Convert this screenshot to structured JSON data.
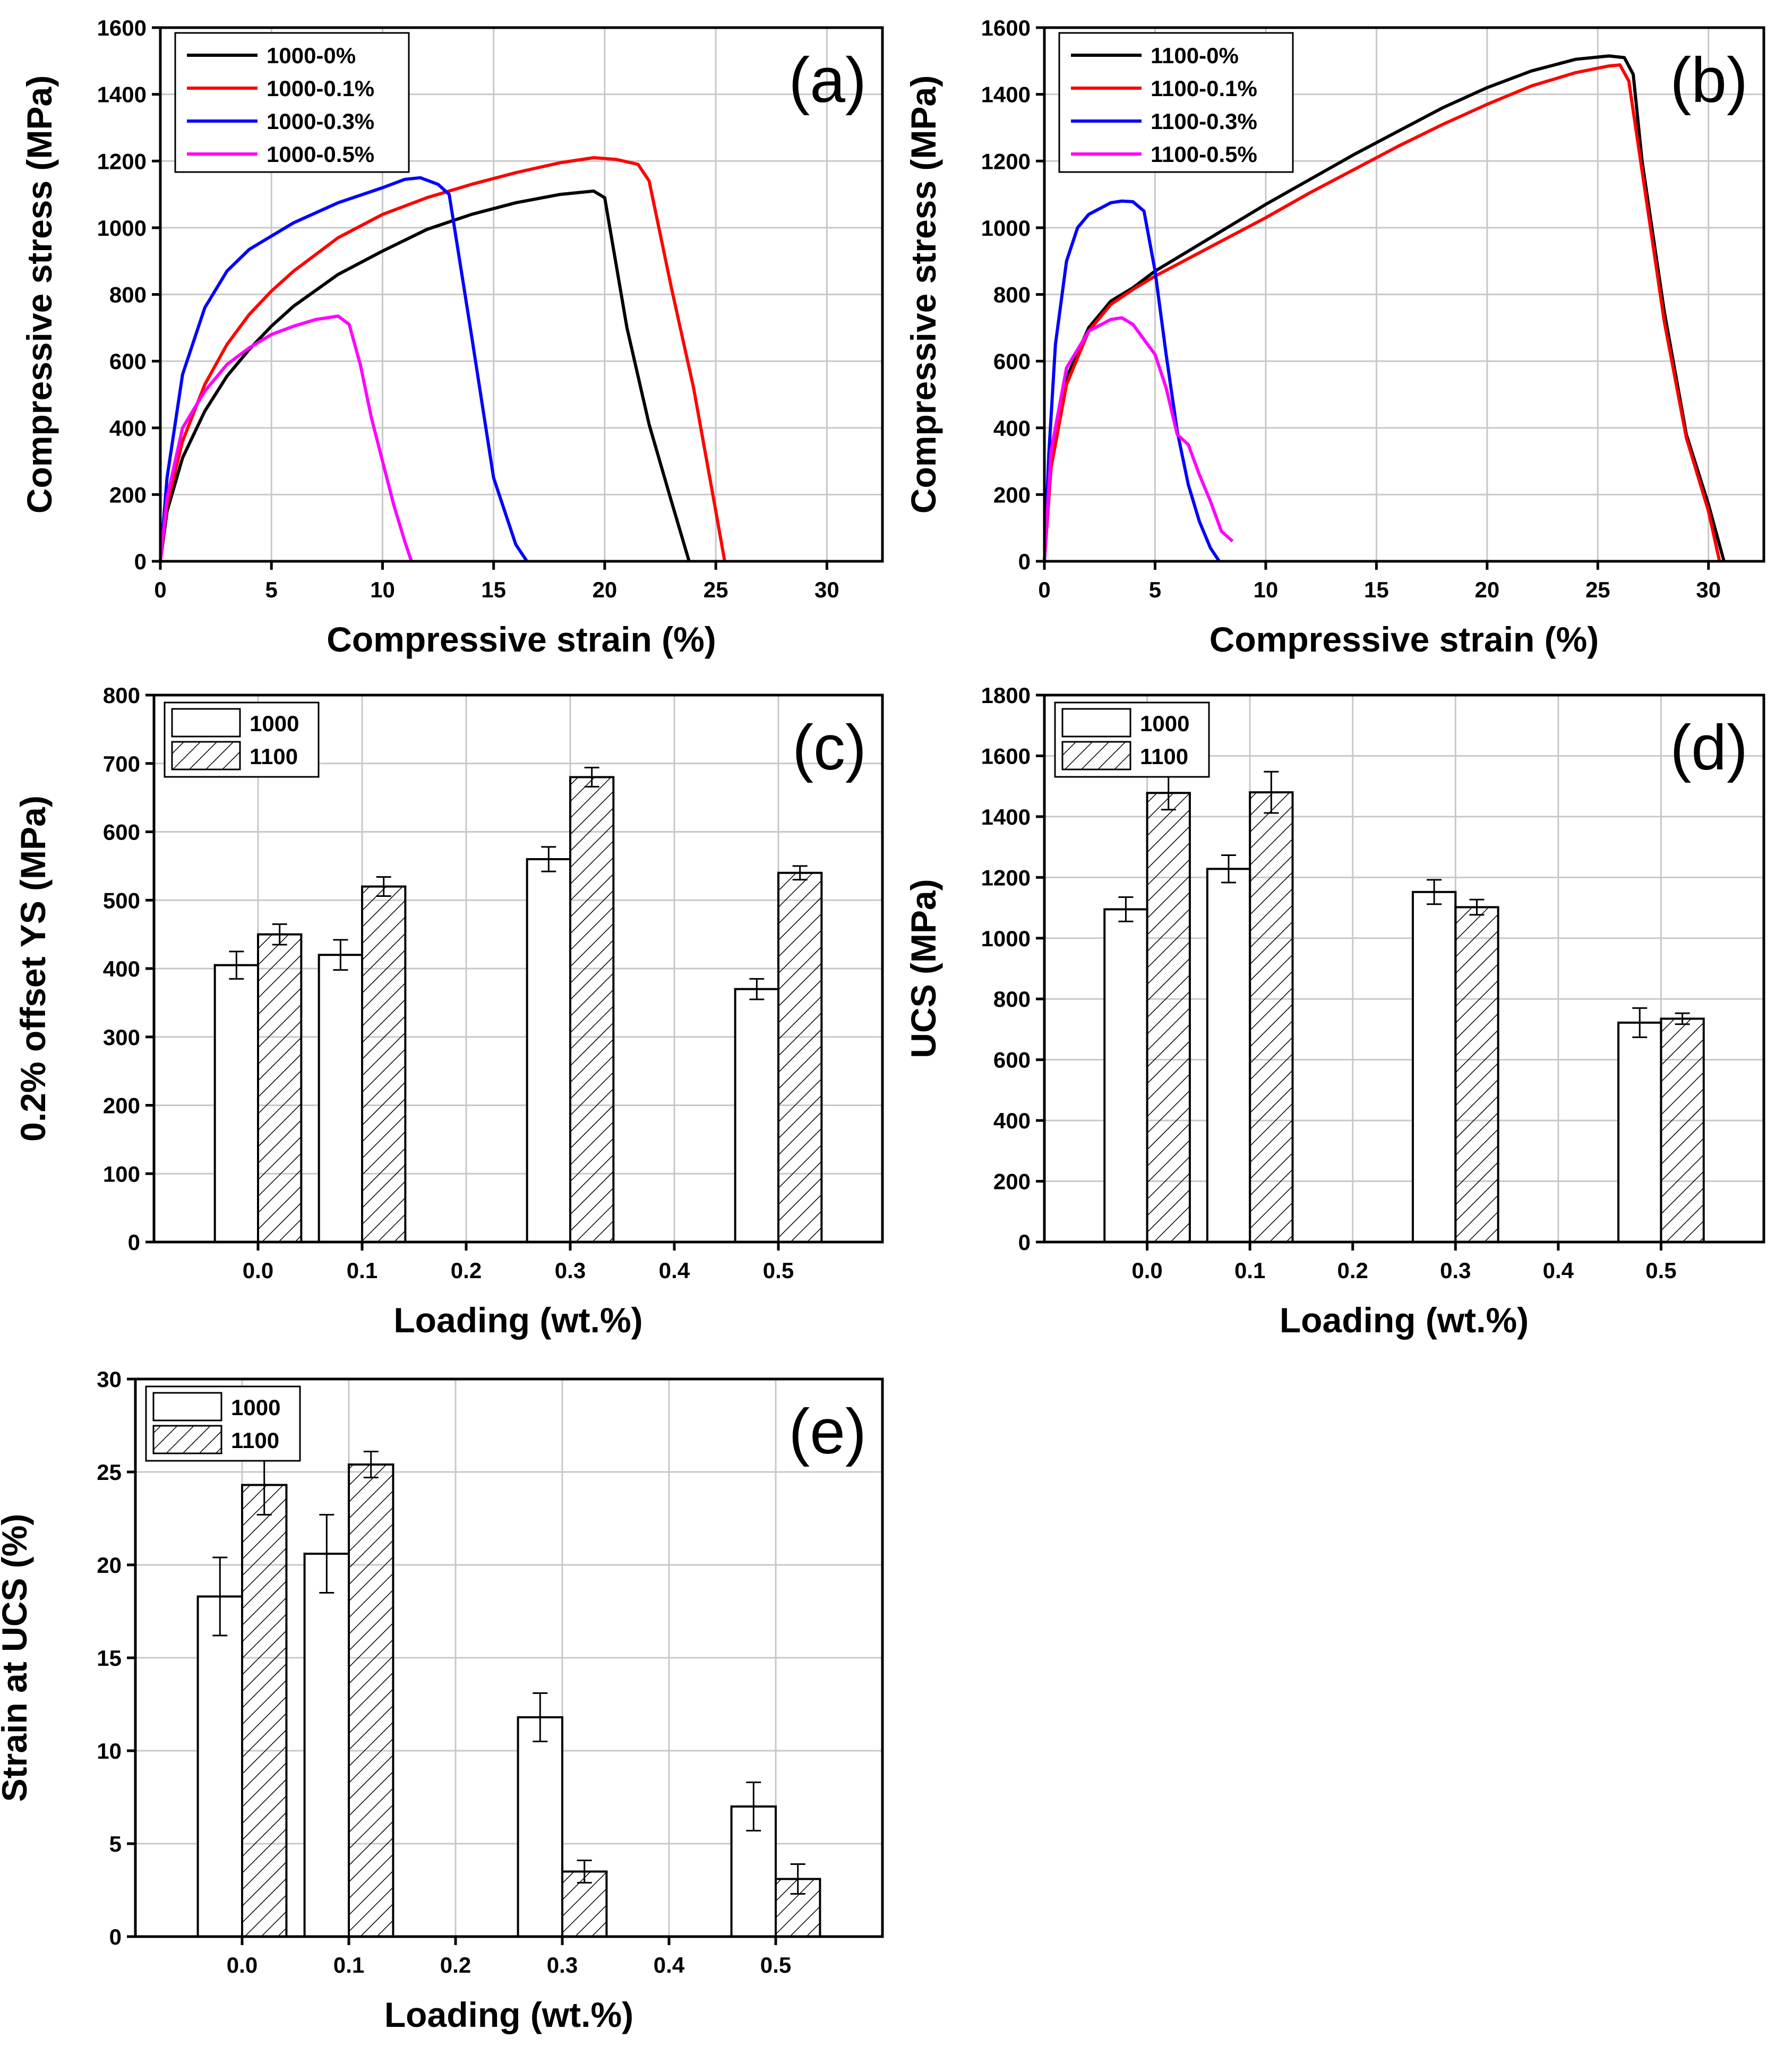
{
  "colors": {
    "black": "#000000",
    "red": "#ff0000",
    "blue": "#0000ff",
    "magenta": "#ff00ff"
  },
  "chart_data": [
    {
      "id": "a",
      "type": "line",
      "panel_label": "(a)",
      "xlabel": "Compressive strain (%)",
      "ylabel": "Compressive stress (MPa)",
      "xlim": [
        0,
        32.5
      ],
      "ylim": [
        0,
        1600
      ],
      "xticks": [
        "0",
        "5",
        "10",
        "15",
        "20",
        "25",
        "30"
      ],
      "yticks": [
        "0",
        "200",
        "400",
        "600",
        "800",
        "1000",
        "1200",
        "1400",
        "1600"
      ],
      "legend": "top-left",
      "series": [
        {
          "name": "1000-0%",
          "color": "#000000",
          "x": [
            0,
            0.3,
            1,
            2,
            3,
            4,
            5,
            6,
            8,
            10,
            12,
            14,
            16,
            18,
            19.5,
            20,
            21,
            22,
            23,
            23.8
          ],
          "y": [
            0,
            150,
            310,
            450,
            555,
            635,
            705,
            765,
            860,
            930,
            995,
            1040,
            1075,
            1100,
            1110,
            1090,
            700,
            410,
            180,
            0
          ]
        },
        {
          "name": "1000-0.1%",
          "color": "#ff0000",
          "x": [
            0,
            0.3,
            1,
            2,
            3,
            4,
            5,
            6,
            8,
            10,
            12,
            14,
            16,
            18,
            19.5,
            20.5,
            21.5,
            22,
            23,
            24,
            25,
            25.4
          ],
          "y": [
            0,
            170,
            360,
            530,
            650,
            740,
            810,
            870,
            970,
            1040,
            1090,
            1130,
            1165,
            1195,
            1210,
            1205,
            1190,
            1140,
            820,
            520,
            150,
            0
          ]
        },
        {
          "name": "1000-0.3%",
          "color": "#0000ff",
          "x": [
            0,
            0.3,
            1,
            2,
            3,
            4,
            5,
            6,
            8,
            10,
            11,
            11.7,
            12.5,
            13,
            14,
            15,
            16,
            16.5
          ],
          "y": [
            0,
            250,
            560,
            760,
            870,
            935,
            975,
            1015,
            1075,
            1120,
            1145,
            1150,
            1130,
            1100,
            680,
            250,
            50,
            0
          ]
        },
        {
          "name": "1000-0.5%",
          "color": "#ff00ff",
          "x": [
            0,
            0.3,
            1,
            2,
            3,
            4,
            5,
            6,
            7,
            8,
            8.5,
            9,
            9.5,
            10,
            10.5,
            11,
            11.3
          ],
          "y": [
            0,
            190,
            400,
            510,
            590,
            640,
            680,
            705,
            725,
            735,
            710,
            590,
            430,
            300,
            170,
            60,
            0
          ]
        }
      ]
    },
    {
      "id": "b",
      "type": "line",
      "panel_label": "(b)",
      "xlabel": "Compressive strain (%)",
      "ylabel": "Compressive stress (MPa)",
      "xlim": [
        0,
        32.5
      ],
      "ylim": [
        0,
        1600
      ],
      "xticks": [
        "0",
        "5",
        "10",
        "15",
        "20",
        "25",
        "30"
      ],
      "yticks": [
        "0",
        "200",
        "400",
        "600",
        "800",
        "1000",
        "1200",
        "1400",
        "1600"
      ],
      "legend": "top-left",
      "series": [
        {
          "name": "1100-0%",
          "color": "#000000",
          "x": [
            0,
            0.3,
            1,
            2,
            3,
            4,
            5,
            6,
            8,
            10,
            12,
            14,
            16,
            18,
            20,
            22,
            24,
            25.5,
            26.2,
            26.6,
            27,
            28,
            29,
            30,
            30.7
          ],
          "y": [
            0,
            300,
            550,
            700,
            780,
            820,
            870,
            910,
            990,
            1070,
            1145,
            1220,
            1290,
            1360,
            1420,
            1470,
            1505,
            1515,
            1510,
            1460,
            1200,
            750,
            380,
            170,
            0
          ]
        },
        {
          "name": "1100-0.1%",
          "color": "#ff0000",
          "x": [
            0,
            0.3,
            1,
            2,
            3,
            4,
            5,
            6,
            8,
            10,
            12,
            14,
            16,
            18,
            20,
            22,
            24,
            25.5,
            26,
            26.4,
            27,
            28,
            29,
            30,
            30.5
          ],
          "y": [
            0,
            280,
            530,
            690,
            770,
            815,
            855,
            890,
            960,
            1030,
            1105,
            1175,
            1245,
            1310,
            1370,
            1425,
            1465,
            1485,
            1488,
            1440,
            1170,
            720,
            370,
            150,
            0
          ]
        },
        {
          "name": "1100-0.3%",
          "color": "#0000ff",
          "x": [
            0,
            0.2,
            0.5,
            1,
            1.5,
            2,
            3,
            3.5,
            4,
            4.5,
            5,
            5.5,
            6,
            6.5,
            7,
            7.5,
            7.9
          ],
          "y": [
            0,
            320,
            650,
            900,
            1000,
            1040,
            1075,
            1080,
            1078,
            1050,
            870,
            620,
            390,
            230,
            120,
            40,
            0
          ]
        },
        {
          "name": "1100-0.5%",
          "color": "#ff00ff",
          "x": [
            0,
            0.3,
            1,
            2,
            3,
            3.5,
            4,
            4.5,
            5,
            5.5,
            6,
            6.5,
            7,
            7.5,
            8,
            8.5
          ],
          "y": [
            0,
            330,
            580,
            690,
            725,
            730,
            710,
            665,
            620,
            520,
            380,
            350,
            260,
            180,
            90,
            60
          ]
        }
      ]
    },
    {
      "id": "c",
      "type": "bar",
      "panel_label": "(c)",
      "xlabel": "Loading (wt.%)",
      "ylabel": "0.2% offset YS (MPa)",
      "xlim": [
        -0.1,
        0.6
      ],
      "ylim": [
        0,
        800
      ],
      "xticks": [
        "0.0",
        "0.1",
        "0.2",
        "0.3",
        "0.4",
        "0.5"
      ],
      "yticks": [
        "0",
        "100",
        "200",
        "300",
        "400",
        "500",
        "600",
        "700",
        "800"
      ],
      "legend": "top-left",
      "x": [
        0.0,
        0.1,
        0.3,
        0.5
      ],
      "series": [
        {
          "name": "1000",
          "pattern": "open",
          "values": [
            405,
            420,
            560,
            370
          ],
          "errors": [
            20,
            22,
            18,
            15
          ]
        },
        {
          "name": "1100",
          "pattern": "hatched",
          "values": [
            450,
            520,
            680,
            540
          ],
          "errors": [
            15,
            14,
            14,
            10
          ]
        }
      ]
    },
    {
      "id": "d",
      "type": "bar",
      "panel_label": "(d)",
      "xlabel": "Loading (wt.%)",
      "ylabel": "UCS (MPa)",
      "xlim": [
        -0.1,
        0.6
      ],
      "ylim": [
        0,
        1800
      ],
      "xticks": [
        "0.0",
        "0.1",
        "0.2",
        "0.3",
        "0.4",
        "0.5"
      ],
      "yticks": [
        "0",
        "200",
        "400",
        "600",
        "800",
        "1000",
        "1200",
        "1400",
        "1600",
        "1800"
      ],
      "legend": "top-left",
      "x": [
        0.0,
        0.1,
        0.3,
        0.5
      ],
      "series": [
        {
          "name": "1000",
          "pattern": "open",
          "values": [
            1095,
            1228,
            1152,
            722
          ],
          "errors": [
            40,
            45,
            40,
            48
          ]
        },
        {
          "name": "1100",
          "pattern": "hatched",
          "values": [
            1478,
            1480,
            1102,
            735
          ],
          "errors": [
            55,
            68,
            25,
            18
          ]
        }
      ]
    },
    {
      "id": "e",
      "type": "bar",
      "panel_label": "(e)",
      "xlabel": "Loading (wt.%)",
      "ylabel": "Strain at UCS (%)",
      "xlim": [
        -0.1,
        0.6
      ],
      "ylim": [
        0,
        30
      ],
      "xticks": [
        "0.0",
        "0.1",
        "0.2",
        "0.3",
        "0.4",
        "0.5"
      ],
      "yticks": [
        "0",
        "5",
        "10",
        "15",
        "20",
        "25",
        "30"
      ],
      "legend": "top-left",
      "x": [
        0.0,
        0.1,
        0.3,
        0.5
      ],
      "series": [
        {
          "name": "1000",
          "pattern": "open",
          "values": [
            18.3,
            20.6,
            11.8,
            7.0
          ],
          "errors": [
            2.1,
            2.1,
            1.3,
            1.3
          ]
        },
        {
          "name": "1100",
          "pattern": "hatched",
          "values": [
            24.3,
            25.4,
            3.5,
            3.1
          ],
          "errors": [
            1.6,
            0.7,
            0.6,
            0.8
          ]
        }
      ]
    }
  ]
}
